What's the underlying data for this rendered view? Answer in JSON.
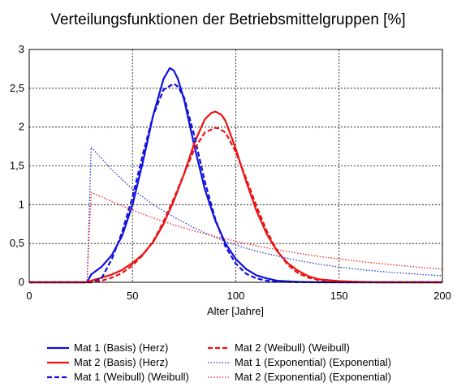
{
  "chart_data": {
    "type": "line",
    "title": "Verteilungsfunktionen der Betriebsmittelgruppen [%]",
    "xlabel": "Alter [Jahre]",
    "ylabel": "",
    "xlim": [
      0,
      200
    ],
    "ylim": [
      0,
      3
    ],
    "x_ticks": [
      "0",
      "50",
      "100",
      "150",
      "200"
    ],
    "y_ticks": [
      "0",
      "0,5",
      "1",
      "1,5",
      "2",
      "2,5",
      "3"
    ],
    "grid": true,
    "legend_position": "bottom",
    "series": [
      {
        "name": "Mat 1 (Basis) (Herz)",
        "color": "#1010dd",
        "dash": "solid",
        "x": [
          0,
          28,
          30,
          35,
          40,
          45,
          50,
          55,
          60,
          65,
          68,
          70,
          72,
          75,
          80,
          85,
          90,
          95,
          100,
          105,
          110,
          115,
          120,
          130,
          140,
          150,
          160,
          200
        ],
        "y": [
          0,
          0,
          0.1,
          0.2,
          0.35,
          0.6,
          1.0,
          1.55,
          2.15,
          2.62,
          2.76,
          2.73,
          2.62,
          2.35,
          1.75,
          1.2,
          0.8,
          0.5,
          0.3,
          0.17,
          0.09,
          0.05,
          0.02,
          0.005,
          0.001,
          0,
          0,
          0
        ]
      },
      {
        "name": "Mat 2 (Basis) (Herz)",
        "color": "#ee1111",
        "dash": "solid",
        "x": [
          0,
          28,
          30,
          35,
          40,
          45,
          50,
          55,
          60,
          65,
          70,
          75,
          80,
          85,
          88,
          90,
          93,
          95,
          100,
          105,
          110,
          115,
          120,
          125,
          130,
          135,
          140,
          150,
          160,
          170,
          180,
          200
        ],
        "y": [
          0,
          0,
          0.02,
          0.06,
          0.1,
          0.16,
          0.25,
          0.36,
          0.52,
          0.75,
          1.05,
          1.4,
          1.8,
          2.1,
          2.18,
          2.2,
          2.16,
          2.08,
          1.72,
          1.3,
          0.92,
          0.62,
          0.4,
          0.25,
          0.15,
          0.08,
          0.04,
          0.015,
          0.005,
          0,
          0,
          0
        ]
      },
      {
        "name": "Mat 1 (Weibull) (Weibull)",
        "color": "#1010dd",
        "dash": "dashed",
        "x": [
          0,
          30,
          35,
          40,
          45,
          50,
          55,
          60,
          65,
          70,
          72,
          75,
          80,
          85,
          90,
          95,
          100,
          105,
          110,
          115,
          120,
          130,
          140,
          150,
          200
        ],
        "y": [
          0,
          0,
          0.05,
          0.3,
          0.65,
          1.1,
          1.65,
          2.15,
          2.48,
          2.56,
          2.52,
          2.38,
          1.88,
          1.3,
          0.82,
          0.46,
          0.24,
          0.11,
          0.05,
          0.02,
          0.008,
          0.001,
          0,
          0,
          0
        ]
      },
      {
        "name": "Mat 2 (Weibull) (Weibull)",
        "color": "#ee1111",
        "dash": "dashed",
        "x": [
          0,
          30,
          35,
          40,
          45,
          50,
          55,
          60,
          65,
          70,
          75,
          80,
          85,
          90,
          92,
          95,
          100,
          105,
          110,
          115,
          120,
          125,
          130,
          135,
          140,
          150,
          160,
          170,
          200
        ],
        "y": [
          0,
          0,
          0.02,
          0.06,
          0.12,
          0.22,
          0.35,
          0.53,
          0.78,
          1.08,
          1.4,
          1.72,
          1.93,
          1.99,
          1.98,
          1.93,
          1.68,
          1.34,
          0.98,
          0.66,
          0.41,
          0.23,
          0.12,
          0.06,
          0.03,
          0.005,
          0.001,
          0,
          0
        ]
      },
      {
        "name": "Mat 1 (Exponential) (Exponential)",
        "color": "#2233dd",
        "dash": "dotted",
        "x": [
          0,
          28,
          30,
          40,
          50,
          60,
          70,
          80,
          90,
          100,
          110,
          120,
          130,
          140,
          150,
          160,
          170,
          180,
          190,
          200
        ],
        "y": [
          0,
          0,
          1.74,
          1.45,
          1.2,
          1.0,
          0.84,
          0.7,
          0.58,
          0.48,
          0.4,
          0.34,
          0.28,
          0.235,
          0.195,
          0.165,
          0.14,
          0.12,
          0.1,
          0.085
        ]
      },
      {
        "name": "Mat 2 (Exponential) (Exponential)",
        "color": "#ee2222",
        "dash": "dotted",
        "x": [
          0,
          28,
          30,
          40,
          50,
          60,
          70,
          80,
          90,
          100,
          110,
          120,
          130,
          140,
          150,
          160,
          170,
          180,
          190,
          200
        ],
        "y": [
          0,
          0,
          1.16,
          1.04,
          0.93,
          0.83,
          0.74,
          0.66,
          0.59,
          0.53,
          0.47,
          0.42,
          0.375,
          0.335,
          0.3,
          0.27,
          0.24,
          0.215,
          0.19,
          0.17
        ]
      }
    ],
    "legend_columns": [
      [
        "Mat 1 (Basis) (Herz)",
        "Mat 2 (Basis) (Herz)",
        "Mat 1 (Weibull) (Weibull)"
      ],
      [
        "Mat 2 (Weibull) (Weibull)",
        "Mat 1 (Exponential) (Exponential)",
        "Mat 2 (Exponential) (Exponential)"
      ]
    ]
  }
}
